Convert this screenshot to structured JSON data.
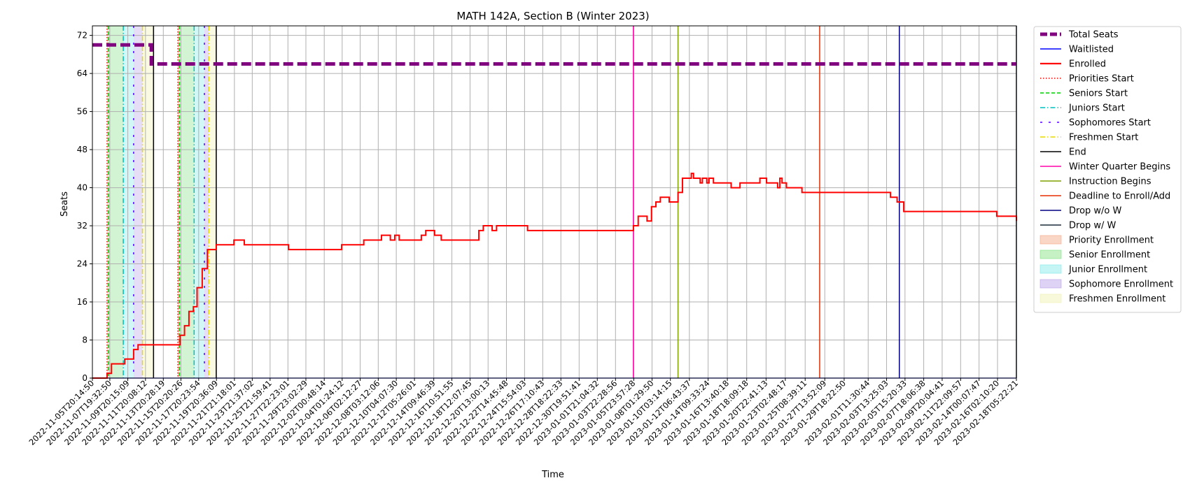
{
  "chart_data": {
    "type": "line",
    "title": "MATH 142A, Section B (Winter 2023)",
    "xlabel": "Time",
    "ylabel": "Seats",
    "ylim": [
      0,
      74
    ],
    "yticks": [
      0,
      8,
      16,
      24,
      32,
      40,
      48,
      56,
      64,
      72
    ],
    "xlim": [
      "2022-11-05T20:14:50",
      "2023-02-18T05:22:21"
    ],
    "xticks": [
      "2022-11-05T20:14:50",
      "2022-11-07T19:32:50",
      "2022-11-09T20:15:09",
      "2022-11-11T20:08:12",
      "2022-11-13T20:28:19",
      "2022-11-15T20:20:26",
      "2022-11-17T20:23:54",
      "2022-11-19T20:36:09",
      "2022-11-21T21:18:01",
      "2022-11-23T21:37:02",
      "2022-11-25T21:59:41",
      "2022-11-27T22:23:01",
      "2022-11-29T23:02:29",
      "2022-12-02T00:48:14",
      "2022-12-04T01:24:12",
      "2022-12-06T02:12:27",
      "2022-12-08T03:12:06",
      "2022-12-10T04:07:30",
      "2022-12-12T05:26:01",
      "2022-12-14T09:46:39",
      "2022-12-16T10:51:55",
      "2022-12-18T12:07:45",
      "2022-12-20T13:00:13",
      "2022-12-22T14:45:48",
      "2022-12-24T15:54:03",
      "2022-12-26T17:10:43",
      "2022-12-28T18:22:33",
      "2022-12-30T19:51:41",
      "2023-01-01T21:04:32",
      "2023-01-03T22:28:56",
      "2023-01-05T23:57:28",
      "2023-01-08T01:29:50",
      "2023-01-10T03:14:15",
      "2023-01-12T06:43:37",
      "2023-01-14T09:33:24",
      "2023-01-16T13:40:18",
      "2023-01-18T18:09:18",
      "2023-01-20T22:41:13",
      "2023-01-23T02:48:17",
      "2023-01-25T08:39:11",
      "2023-01-27T13:52:09",
      "2023-01-29T18:22:50",
      "2023-02-01T11:30:44",
      "2023-02-03T13:25:03",
      "2023-02-05T15:20:33",
      "2023-02-07T18:06:38",
      "2023-02-09T20:04:41",
      "2023-02-11T22:09:57",
      "2023-02-14T00:07:47",
      "2023-02-16T02:10:20",
      "2023-02-18T05:22:21"
    ],
    "grid": true,
    "legend_position": "outside-right",
    "series": [
      {
        "name": "Total Seats",
        "color": "#800080",
        "style": "dashed-thick",
        "points": [
          [
            "2022-11-05T20:14:50",
            70
          ],
          [
            "2022-11-12T12:00:00",
            70
          ],
          [
            "2022-11-12T12:00:00",
            66
          ],
          [
            "2023-02-18T05:22:21",
            66
          ]
        ]
      },
      {
        "name": "Waitlisted",
        "color": "#0000ff",
        "style": "solid",
        "points": [
          [
            "2022-11-05T20:14:50",
            0
          ],
          [
            "2023-02-18T05:22:21",
            0
          ]
        ]
      },
      {
        "name": "Enrolled",
        "color": "#ff0000",
        "style": "solid-thick",
        "points": [
          [
            "2022-11-05T20:14:50",
            0
          ],
          [
            "2022-11-07T12:00:00",
            0
          ],
          [
            "2022-11-07T12:00:00",
            1
          ],
          [
            "2022-11-08T00:00:00",
            1
          ],
          [
            "2022-11-08T00:00:00",
            3
          ],
          [
            "2022-11-09T12:00:00",
            3
          ],
          [
            "2022-11-09T12:00:00",
            4
          ],
          [
            "2022-11-10T12:00:00",
            4
          ],
          [
            "2022-11-10T12:00:00",
            6
          ],
          [
            "2022-11-11T00:00:00",
            6
          ],
          [
            "2022-11-11T00:00:00",
            7
          ],
          [
            "2022-11-15T18:00:00",
            7
          ],
          [
            "2022-11-15T18:00:00",
            9
          ],
          [
            "2022-11-16T06:00:00",
            9
          ],
          [
            "2022-11-16T06:00:00",
            11
          ],
          [
            "2022-11-16T18:00:00",
            11
          ],
          [
            "2022-11-16T18:00:00",
            14
          ],
          [
            "2022-11-17T06:00:00",
            14
          ],
          [
            "2022-11-17T06:00:00",
            15
          ],
          [
            "2022-11-17T16:00:00",
            15
          ],
          [
            "2022-11-17T16:00:00",
            19
          ],
          [
            "2022-11-18T06:00:00",
            19
          ],
          [
            "2022-11-18T06:00:00",
            23
          ],
          [
            "2022-11-18T20:00:00",
            23
          ],
          [
            "2022-11-18T20:00:00",
            27
          ],
          [
            "2022-11-19T20:00:00",
            27
          ],
          [
            "2022-11-19T20:00:00",
            28
          ],
          [
            "2022-11-21T20:00:00",
            28
          ],
          [
            "2022-11-21T20:00:00",
            29
          ],
          [
            "2022-11-23T00:00:00",
            29
          ],
          [
            "2022-11-23T00:00:00",
            28
          ],
          [
            "2022-11-28T00:00:00",
            28
          ],
          [
            "2022-11-28T00:00:00",
            27
          ],
          [
            "2022-12-04T00:00:00",
            27
          ],
          [
            "2022-12-04T00:00:00",
            28
          ],
          [
            "2022-12-06T12:00:00",
            28
          ],
          [
            "2022-12-06T12:00:00",
            29
          ],
          [
            "2022-12-08T12:00:00",
            29
          ],
          [
            "2022-12-08T12:00:00",
            30
          ],
          [
            "2022-12-09T12:00:00",
            30
          ],
          [
            "2022-12-09T12:00:00",
            29
          ],
          [
            "2022-12-10T00:00:00",
            29
          ],
          [
            "2022-12-10T00:00:00",
            30
          ],
          [
            "2022-12-10T12:00:00",
            30
          ],
          [
            "2022-12-10T12:00:00",
            29
          ],
          [
            "2022-12-13T00:00:00",
            29
          ],
          [
            "2022-12-13T00:00:00",
            30
          ],
          [
            "2022-12-13T12:00:00",
            30
          ],
          [
            "2022-12-13T12:00:00",
            31
          ],
          [
            "2022-12-14T12:00:00",
            31
          ],
          [
            "2022-12-14T12:00:00",
            30
          ],
          [
            "2022-12-15T06:00:00",
            30
          ],
          [
            "2022-12-15T06:00:00",
            29
          ],
          [
            "2022-12-19T12:00:00",
            29
          ],
          [
            "2022-12-19T12:00:00",
            31
          ],
          [
            "2022-12-20T00:00:00",
            31
          ],
          [
            "2022-12-20T00:00:00",
            32
          ],
          [
            "2022-12-21T00:00:00",
            32
          ],
          [
            "2022-12-21T00:00:00",
            31
          ],
          [
            "2022-12-21T12:00:00",
            31
          ],
          [
            "2022-12-21T12:00:00",
            32
          ],
          [
            "2022-12-25T00:00:00",
            32
          ],
          [
            "2022-12-25T00:00:00",
            31
          ],
          [
            "2023-01-05T23:00:00",
            31
          ],
          [
            "2023-01-05T23:00:00",
            32
          ],
          [
            "2023-01-06T12:00:00",
            32
          ],
          [
            "2023-01-06T12:00:00",
            34
          ],
          [
            "2023-01-07T12:00:00",
            34
          ],
          [
            "2023-01-07T12:00:00",
            33
          ],
          [
            "2023-01-08T00:00:00",
            33
          ],
          [
            "2023-01-08T00:00:00",
            36
          ],
          [
            "2023-01-08T12:00:00",
            36
          ],
          [
            "2023-01-08T12:00:00",
            37
          ],
          [
            "2023-01-09T00:00:00",
            37
          ],
          [
            "2023-01-09T00:00:00",
            38
          ],
          [
            "2023-01-10T00:00:00",
            38
          ],
          [
            "2023-01-10T00:00:00",
            37
          ],
          [
            "2023-01-11T00:00:00",
            37
          ],
          [
            "2023-01-11T00:00:00",
            39
          ],
          [
            "2023-01-11T12:00:00",
            39
          ],
          [
            "2023-01-11T12:00:00",
            42
          ],
          [
            "2023-01-12T12:00:00",
            42
          ],
          [
            "2023-01-12T12:00:00",
            43
          ],
          [
            "2023-01-12T18:00:00",
            43
          ],
          [
            "2023-01-12T18:00:00",
            42
          ],
          [
            "2023-01-13T12:00:00",
            42
          ],
          [
            "2023-01-13T12:00:00",
            41
          ],
          [
            "2023-01-13T18:00:00",
            41
          ],
          [
            "2023-01-13T18:00:00",
            42
          ],
          [
            "2023-01-14T06:00:00",
            42
          ],
          [
            "2023-01-14T06:00:00",
            41
          ],
          [
            "2023-01-14T12:00:00",
            41
          ],
          [
            "2023-01-14T12:00:00",
            42
          ],
          [
            "2023-01-15T00:00:00",
            42
          ],
          [
            "2023-01-15T00:00:00",
            41
          ],
          [
            "2023-01-17T00:00:00",
            41
          ],
          [
            "2023-01-17T00:00:00",
            40
          ],
          [
            "2023-01-18T00:00:00",
            40
          ],
          [
            "2023-01-18T00:00:00",
            41
          ],
          [
            "2023-01-20T06:00:00",
            41
          ],
          [
            "2023-01-20T06:00:00",
            42
          ],
          [
            "2023-01-21T00:00:00",
            42
          ],
          [
            "2023-01-21T00:00:00",
            41
          ],
          [
            "2023-01-22T06:00:00",
            41
          ],
          [
            "2023-01-22T06:00:00",
            40
          ],
          [
            "2023-01-22T12:00:00",
            40
          ],
          [
            "2023-01-22T12:00:00",
            42
          ],
          [
            "2023-01-22T18:00:00",
            42
          ],
          [
            "2023-01-22T18:00:00",
            41
          ],
          [
            "2023-01-23T06:00:00",
            41
          ],
          [
            "2023-01-23T06:00:00",
            40
          ],
          [
            "2023-01-25T00:00:00",
            40
          ],
          [
            "2023-01-25T00:00:00",
            39
          ],
          [
            "2023-02-04T00:00:00",
            39
          ],
          [
            "2023-02-04T00:00:00",
            38
          ],
          [
            "2023-02-04T18:00:00",
            38
          ],
          [
            "2023-02-04T18:00:00",
            37
          ],
          [
            "2023-02-05T12:00:00",
            37
          ],
          [
            "2023-02-05T12:00:00",
            35
          ],
          [
            "2023-02-16T00:00:00",
            35
          ],
          [
            "2023-02-16T00:00:00",
            34
          ],
          [
            "2023-02-18T12:00:00",
            34
          ],
          [
            "2023-02-18T12:00:00",
            33
          ],
          [
            "2023-02-18T23:00:00",
            33
          ]
        ]
      }
    ],
    "vlines": [
      {
        "name": "Priorities Start",
        "color": "#ff0000",
        "style": "dotted",
        "times": [
          "2022-11-07T12:00:00"
        ]
      },
      {
        "name": "Seniors Start",
        "color": "#00cc00",
        "style": "dashed",
        "times": [
          "2022-11-07T16:00:00"
        ]
      },
      {
        "name": "Juniors Start",
        "color": "#00bfbf",
        "style": "dashdot",
        "times": [
          "2022-11-09T08:00:00"
        ]
      },
      {
        "name": "Sophomores Start",
        "color": "#5500ff",
        "style": "loosedash",
        "times": [
          "2022-11-10T12:00:00"
        ]
      },
      {
        "name": "Freshmen Start",
        "color": "#e6d800",
        "style": "dashdot",
        "times": [
          "2022-11-11T12:00:00"
        ]
      },
      {
        "name": "End",
        "color": "#000000",
        "style": "solid",
        "times": [
          "2022-11-12T18:00:00",
          "2022-11-19T20:00:00"
        ]
      },
      {
        "name": "Winter Quarter Begins",
        "color": "#ff00aa",
        "style": "solid",
        "times": [
          "2023-01-05T23:00:00"
        ]
      },
      {
        "name": "Instruction Begins",
        "color": "#7fa000",
        "style": "solid",
        "times": [
          "2023-01-11T00:00:00"
        ]
      },
      {
        "name": "Deadline to Enroll/Add",
        "color": "#e62e00",
        "style": "solid",
        "times": [
          "2023-01-27T00:00:00"
        ]
      },
      {
        "name": "Drop w/o W",
        "color": "#000080",
        "style": "solid",
        "times": [
          "2023-02-05T00:00:00"
        ]
      },
      {
        "name": "Drop w/ W",
        "color": "#1a2a3a",
        "style": "solid",
        "times": [
          "2023-02-18T12:00:00"
        ]
      }
    ],
    "extra_vlines": [
      {
        "color": "#ff0000",
        "style": "dotted",
        "times": [
          "2022-11-15T12:00:00"
        ]
      },
      {
        "color": "#00cc00",
        "style": "dashed",
        "times": [
          "2022-11-15T16:00:00"
        ]
      },
      {
        "color": "#00bfbf",
        "style": "dashdot",
        "times": [
          "2022-11-17T08:00:00"
        ]
      },
      {
        "color": "#5500ff",
        "style": "loosedash",
        "times": [
          "2022-11-18T12:00:00"
        ]
      },
      {
        "color": "#e6d800",
        "style": "dashdot",
        "times": [
          "2022-11-19T00:00:00"
        ]
      }
    ],
    "spans": [
      {
        "name": "Priority Enrollment",
        "color": "#f4a582",
        "ranges": [
          [
            "2022-11-07T12:00:00",
            "2022-11-07T16:00:00"
          ],
          [
            "2022-11-15T12:00:00",
            "2022-11-15T16:00:00"
          ]
        ]
      },
      {
        "name": "Senior Enrollment",
        "color": "#7fe07f",
        "ranges": [
          [
            "2022-11-07T16:00:00",
            "2022-11-09T08:00:00"
          ],
          [
            "2022-11-15T16:00:00",
            "2022-11-17T08:00:00"
          ]
        ]
      },
      {
        "name": "Junior Enrollment",
        "color": "#7fe8e8",
        "ranges": [
          [
            "2022-11-09T08:00:00",
            "2022-11-10T12:00:00"
          ],
          [
            "2022-11-17T08:00:00",
            "2022-11-18T12:00:00"
          ]
        ]
      },
      {
        "name": "Sophomore Enrollment",
        "color": "#b89ee8",
        "ranges": [
          [
            "2022-11-10T12:00:00",
            "2022-11-11T12:00:00"
          ],
          [
            "2022-11-18T12:00:00",
            "2022-11-19T00:00:00"
          ]
        ]
      },
      {
        "name": "Freshmen Enrollment",
        "color": "#f0f0b0",
        "ranges": [
          [
            "2022-11-11T12:00:00",
            "2022-11-12T18:00:00"
          ],
          [
            "2022-11-19T00:00:00",
            "2022-11-19T20:00:00"
          ]
        ]
      }
    ]
  }
}
